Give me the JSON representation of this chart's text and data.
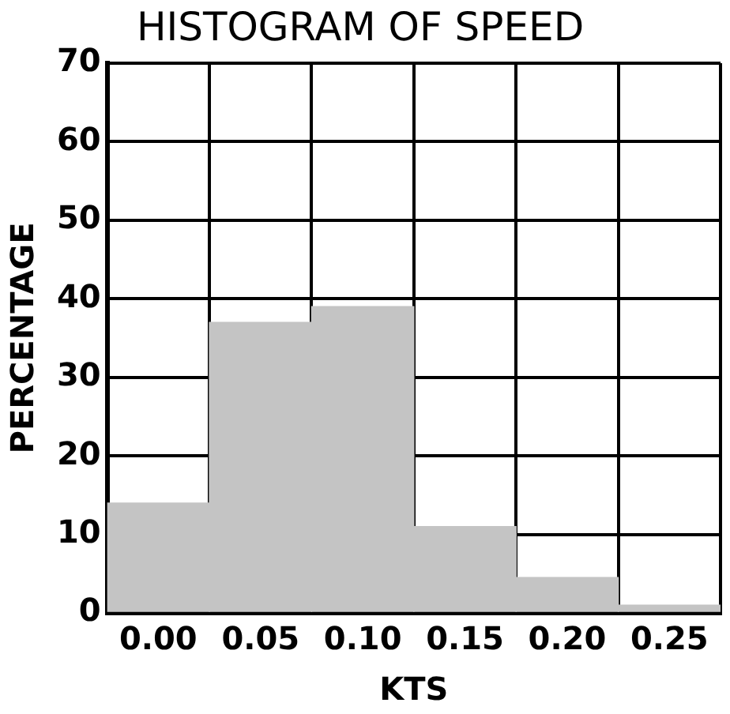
{
  "chart_data": {
    "type": "bar",
    "title": "HISTOGRAM OF SPEED",
    "xlabel": "KTS",
    "ylabel": "PERCENTAGE",
    "categories": [
      "0.00",
      "0.05",
      "0.10",
      "0.15",
      "0.20",
      "0.25"
    ],
    "values": [
      14,
      37,
      39,
      11,
      4.5,
      1
    ],
    "color": "#c4c4c4",
    "ylim": [
      0,
      70
    ],
    "yticks": [
      0,
      10,
      20,
      30,
      40,
      50,
      60,
      70
    ],
    "grid": true
  }
}
